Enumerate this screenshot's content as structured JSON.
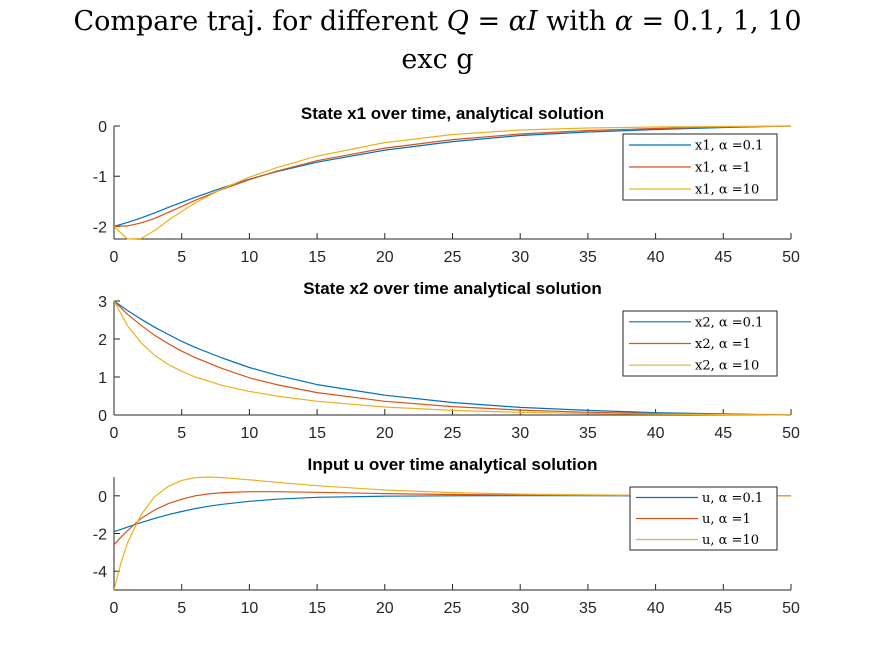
{
  "figure": {
    "title_line1": "Compare traj. for different Q = αI with α = 0.1, 1, 10",
    "title_line2": "exc g"
  },
  "chart_data": [
    {
      "type": "line",
      "title": "State x1 over time, analytical solution",
      "xlabel": "",
      "ylabel": "",
      "xlim": [
        0,
        50
      ],
      "ylim": [
        -2.25,
        0
      ],
      "xticks": [
        0,
        5,
        10,
        15,
        20,
        25,
        30,
        35,
        40,
        45,
        50
      ],
      "yticks": [
        -2,
        -1,
        0
      ],
      "legend_position": "top-right",
      "x": [
        0,
        1,
        2,
        3,
        4,
        5,
        6,
        8,
        10,
        12,
        15,
        20,
        25,
        30,
        35,
        40,
        45,
        50
      ],
      "series": [
        {
          "name": "x1, α =0.1",
          "color": "#0072BD",
          "values": [
            -2.0,
            -1.92,
            -1.83,
            -1.73,
            -1.62,
            -1.52,
            -1.42,
            -1.23,
            -1.06,
            -0.91,
            -0.72,
            -0.48,
            -0.31,
            -0.19,
            -0.12,
            -0.07,
            -0.03,
            0.0
          ]
        },
        {
          "name": "x1, α =1",
          "color": "#D95319",
          "values": [
            -2.0,
            -1.99,
            -1.93,
            -1.84,
            -1.72,
            -1.6,
            -1.48,
            -1.26,
            -1.07,
            -0.9,
            -0.69,
            -0.44,
            -0.27,
            -0.16,
            -0.09,
            -0.05,
            -0.02,
            0.0
          ]
        },
        {
          "name": "x1, α =10",
          "color": "#EDB120",
          "values": [
            -2.0,
            -2.25,
            -2.24,
            -2.08,
            -1.88,
            -1.7,
            -1.53,
            -1.25,
            -1.02,
            -0.83,
            -0.6,
            -0.33,
            -0.17,
            -0.08,
            -0.04,
            -0.02,
            -0.01,
            0.0
          ]
        }
      ]
    },
    {
      "type": "line",
      "title": "State x2 over time analytical solution",
      "xlabel": "",
      "ylabel": "",
      "xlim": [
        0,
        50
      ],
      "ylim": [
        0,
        3
      ],
      "xticks": [
        0,
        5,
        10,
        15,
        20,
        25,
        30,
        35,
        40,
        45,
        50
      ],
      "yticks": [
        0,
        1,
        2,
        3
      ],
      "legend_position": "top-right",
      "x": [
        0,
        1,
        2,
        3,
        4,
        5,
        6,
        8,
        10,
        12,
        15,
        20,
        25,
        30,
        35,
        40,
        45,
        50
      ],
      "series": [
        {
          "name": "x2, α =0.1",
          "color": "#0072BD",
          "values": [
            3.0,
            2.75,
            2.52,
            2.31,
            2.12,
            1.94,
            1.78,
            1.5,
            1.25,
            1.05,
            0.8,
            0.52,
            0.33,
            0.2,
            0.12,
            0.06,
            0.03,
            0.0
          ]
        },
        {
          "name": "x2, α =1",
          "color": "#D95319",
          "values": [
            3.0,
            2.65,
            2.36,
            2.1,
            1.88,
            1.68,
            1.51,
            1.22,
            0.98,
            0.8,
            0.59,
            0.36,
            0.22,
            0.13,
            0.07,
            0.04,
            0.02,
            0.0
          ]
        },
        {
          "name": "x2, α =10",
          "color": "#EDB120",
          "values": [
            3.0,
            2.35,
            1.9,
            1.57,
            1.33,
            1.15,
            1.0,
            0.78,
            0.62,
            0.5,
            0.36,
            0.21,
            0.12,
            0.07,
            0.04,
            0.02,
            0.01,
            0.0
          ]
        }
      ]
    },
    {
      "type": "line",
      "title": "Input u over time analytical solution",
      "xlabel": "",
      "ylabel": "",
      "xlim": [
        0,
        50
      ],
      "ylim": [
        -5,
        1
      ],
      "xticks": [
        0,
        5,
        10,
        15,
        20,
        25,
        30,
        35,
        40,
        45,
        50
      ],
      "yticks": [
        -4,
        -2,
        0
      ],
      "legend_position": "top-right",
      "x": [
        0,
        0.5,
        1,
        2,
        3,
        4,
        5,
        6,
        7,
        8,
        10,
        12,
        15,
        20,
        25,
        30,
        35,
        40,
        45,
        50
      ],
      "series": [
        {
          "name": "u, α =0.1",
          "color": "#0072BD",
          "values": [
            -1.9,
            -1.78,
            -1.66,
            -1.42,
            -1.2,
            -1.0,
            -0.83,
            -0.68,
            -0.55,
            -0.45,
            -0.29,
            -0.18,
            -0.08,
            -0.02,
            0.0,
            0.01,
            0.01,
            0.0,
            0.0,
            0.0
          ]
        },
        {
          "name": "u, α =1",
          "color": "#D95319",
          "values": [
            -2.6,
            -2.2,
            -1.85,
            -1.2,
            -0.75,
            -0.42,
            -0.18,
            0.0,
            0.1,
            0.17,
            0.22,
            0.22,
            0.19,
            0.12,
            0.07,
            0.04,
            0.02,
            0.01,
            0.0,
            0.0
          ]
        },
        {
          "name": "u, α =10",
          "color": "#EDB120",
          "values": [
            -5.0,
            -3.6,
            -2.5,
            -1.0,
            -0.05,
            0.5,
            0.82,
            0.97,
            1.0,
            0.97,
            0.85,
            0.72,
            0.54,
            0.31,
            0.17,
            0.09,
            0.05,
            0.03,
            0.01,
            0.0
          ]
        }
      ]
    }
  ]
}
